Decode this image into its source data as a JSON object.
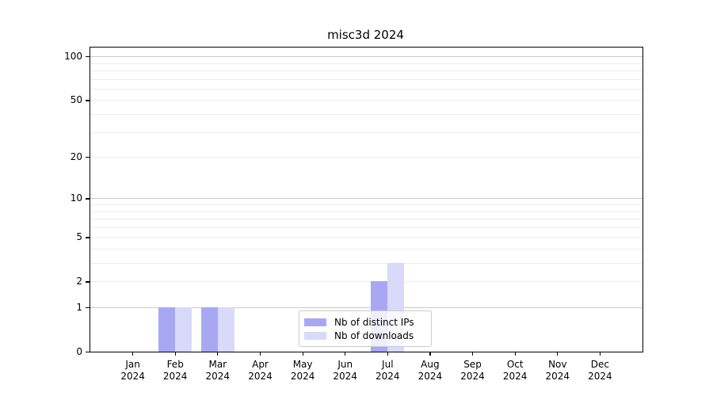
{
  "title": "misc3d 2024",
  "chart_data": {
    "type": "bar",
    "title": "misc3d 2024",
    "categories": [
      "Jan 2024",
      "Feb 2024",
      "Mar 2024",
      "Apr 2024",
      "May 2024",
      "Jun 2024",
      "Jul 2024",
      "Aug 2024",
      "Sep 2024",
      "Oct 2024",
      "Nov 2024",
      "Dec 2024"
    ],
    "series": [
      {
        "name": "Nb of distinct IPs",
        "color": "#a8a8f2",
        "values": [
          0,
          1,
          1,
          0,
          0,
          0,
          2,
          0,
          0,
          0,
          0,
          0
        ]
      },
      {
        "name": "Nb of downloads",
        "color": "#d9d9f9",
        "values": [
          0,
          1,
          1,
          0,
          0,
          0,
          3,
          0,
          0,
          0,
          0,
          0
        ]
      }
    ],
    "xlabel": "",
    "ylabel": "",
    "y_axis": {
      "scale": "log10(1+v)",
      "labeled_ticks": [
        0,
        1,
        2,
        5,
        10,
        20,
        50,
        100
      ],
      "major_gridlines": [
        1,
        10,
        100
      ],
      "minor_gridlines": [
        2,
        3,
        4,
        5,
        6,
        7,
        8,
        9,
        20,
        30,
        40,
        50,
        60,
        70,
        80,
        90
      ],
      "ylim": [
        0,
        118
      ]
    },
    "grid": true,
    "legend": {
      "position": "lower center",
      "entries": [
        "Nb of distinct IPs",
        "Nb of downloads"
      ]
    },
    "colors": {
      "bar_distinct_ips": "#a8a8f2",
      "bar_downloads": "#d9d9f9",
      "grid_major": "#c9c9c9",
      "grid_minor": "#ececec",
      "spine": "#000000"
    }
  }
}
